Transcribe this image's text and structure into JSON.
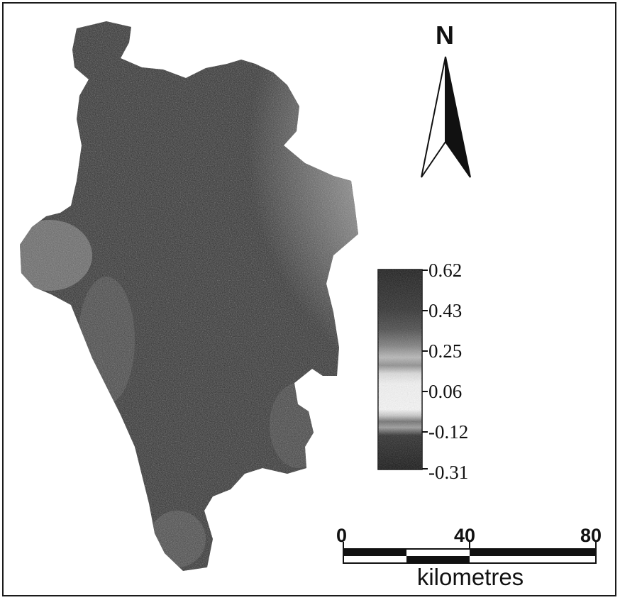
{
  "north_arrow": {
    "label": "N"
  },
  "legend": {
    "labels": [
      "0.62",
      "0.43",
      "0.25",
      "0.06",
      "-0.12",
      "-0.31"
    ]
  },
  "scale_bar": {
    "ticks": [
      "0",
      "40",
      "80"
    ],
    "unit": "kilometres"
  }
}
